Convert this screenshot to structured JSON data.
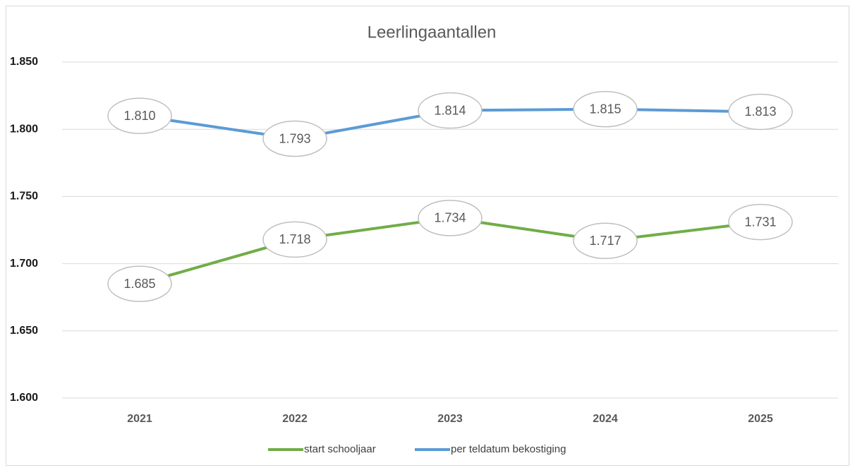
{
  "chart_data": {
    "type": "line",
    "title": "Leerlingaantallen",
    "categories": [
      "2021",
      "2022",
      "2023",
      "2024",
      "2025"
    ],
    "series": [
      {
        "name": "start schooljaar",
        "color": "#70ad47",
        "values": [
          1685,
          1718,
          1734,
          1717,
          1731
        ],
        "value_labels": [
          "1.685",
          "1.718",
          "1.734",
          "1.717",
          "1.731"
        ]
      },
      {
        "name": "per teldatum bekostiging",
        "color": "#5b9bd5",
        "values": [
          1810,
          1793,
          1814,
          1815,
          1813
        ],
        "value_labels": [
          "1.810",
          "1.793",
          "1.814",
          "1.815",
          "1.813"
        ]
      }
    ],
    "ylim": [
      1600,
      1850
    ],
    "yticks": [
      {
        "value": 1600,
        "label": "1.600"
      },
      {
        "value": 1650,
        "label": "1.650"
      },
      {
        "value": 1700,
        "label": "1.700"
      },
      {
        "value": 1750,
        "label": "1.750"
      },
      {
        "value": 1800,
        "label": "1.800"
      },
      {
        "value": 1850,
        "label": "1.850"
      }
    ],
    "grid": true,
    "legend": "bottom"
  }
}
